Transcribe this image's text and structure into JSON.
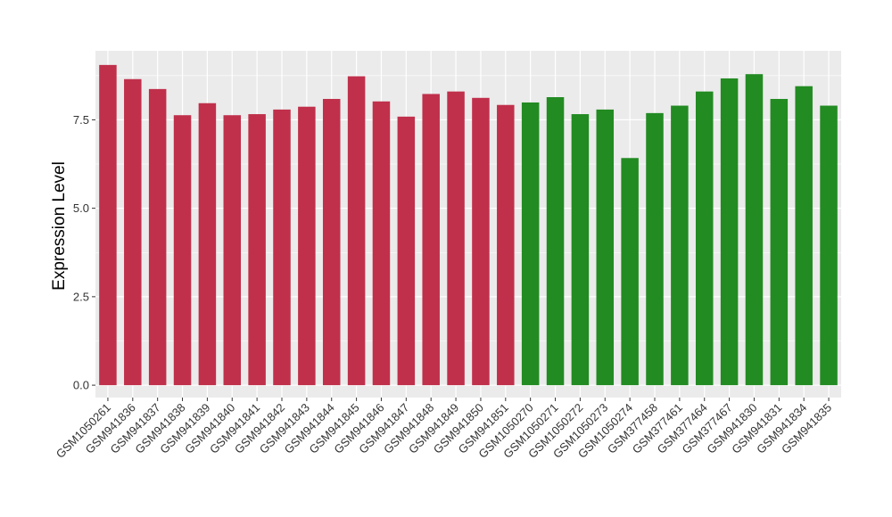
{
  "chart_data": {
    "type": "bar",
    "title": "",
    "xlabel": "",
    "ylabel": "Expression Level",
    "ylim": [
      -0.35,
      9.45
    ],
    "yticks": [
      0.0,
      2.5,
      5.0,
      7.5
    ],
    "ytick_labels": [
      "0.0",
      "2.5",
      "5.0",
      "7.5"
    ],
    "grid": true,
    "legend": "none",
    "background": "#EBEBEB",
    "gridline_color": "#FFFFFF",
    "categories": [
      "GSM1050261",
      "GSM941836",
      "GSM941837",
      "GSM941838",
      "GSM941839",
      "GSM941840",
      "GSM941841",
      "GSM941842",
      "GSM941843",
      "GSM941844",
      "GSM941845",
      "GSM941846",
      "GSM941847",
      "GSM941848",
      "GSM941849",
      "GSM941850",
      "GSM941851",
      "GSM1050270",
      "GSM1050271",
      "GSM1050272",
      "GSM1050273",
      "GSM1050274",
      "GSM377458",
      "GSM377461",
      "GSM377464",
      "GSM377467",
      "GSM941830",
      "GSM941831",
      "GSM941834",
      "GSM941835"
    ],
    "values": [
      9.05,
      8.65,
      8.37,
      7.63,
      7.97,
      7.63,
      7.66,
      7.79,
      7.87,
      8.09,
      8.73,
      8.02,
      7.59,
      8.23,
      8.3,
      8.12,
      7.92,
      7.99,
      8.14,
      7.66,
      7.79,
      6.42,
      7.69,
      7.9,
      8.3,
      8.67,
      8.79,
      8.09,
      8.45,
      7.9
    ],
    "colors": [
      "#C0304B",
      "#C0304B",
      "#C0304B",
      "#C0304B",
      "#C0304B",
      "#C0304B",
      "#C0304B",
      "#C0304B",
      "#C0304B",
      "#C0304B",
      "#C0304B",
      "#C0304B",
      "#C0304B",
      "#C0304B",
      "#C0304B",
      "#C0304B",
      "#C0304B",
      "#228B22",
      "#228B22",
      "#228B22",
      "#228B22",
      "#228B22",
      "#228B22",
      "#228B22",
      "#228B22",
      "#228B22",
      "#228B22",
      "#228B22",
      "#228B22",
      "#228B22"
    ]
  }
}
